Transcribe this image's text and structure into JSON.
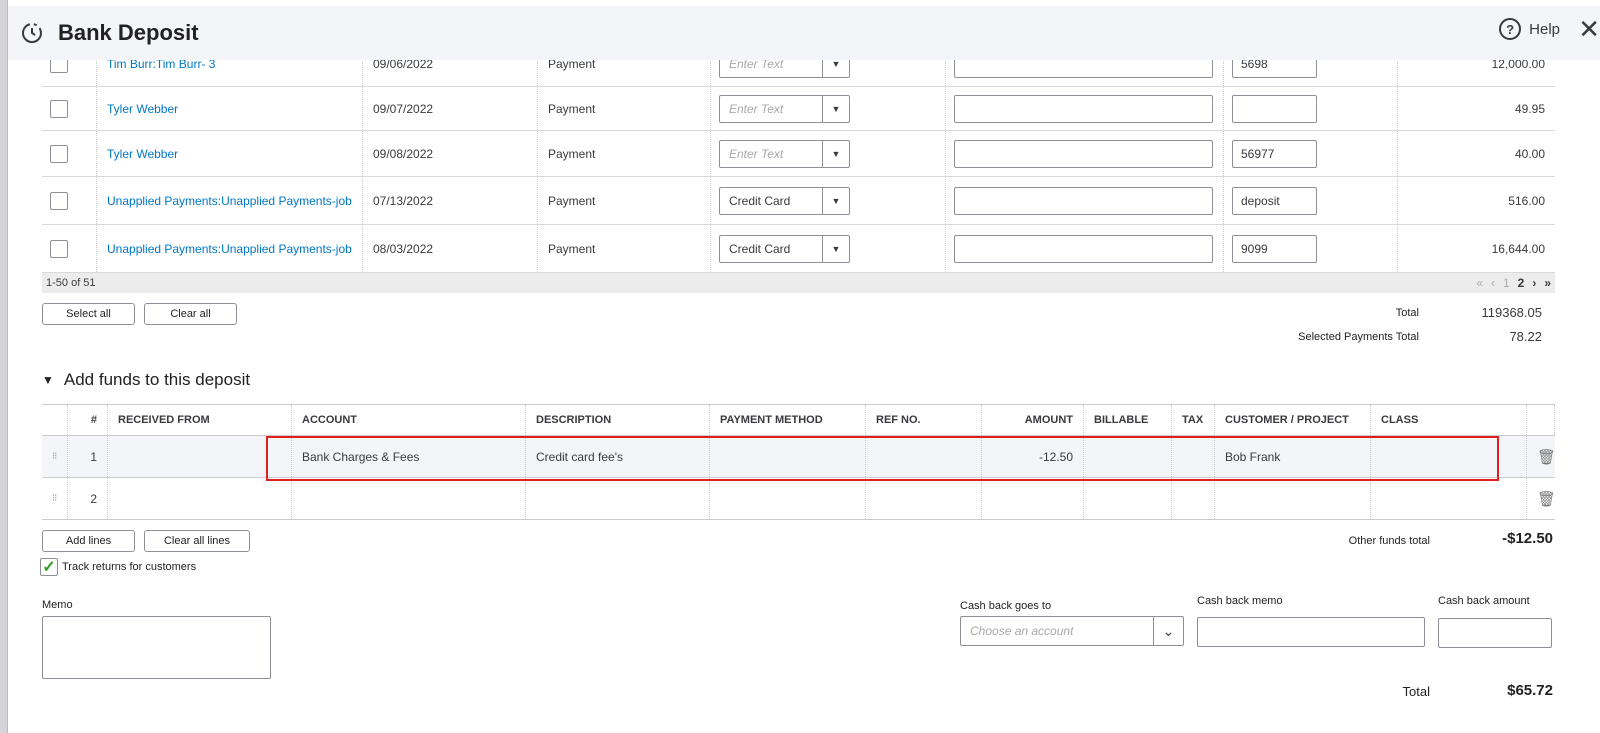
{
  "header": {
    "title": "Bank Deposit",
    "help": "Help"
  },
  "payments": [
    {
      "name": "Tim Burr:Tim Burr- 3",
      "date": "09/06/2022",
      "type": "Payment",
      "method": "",
      "method_placeholder": "Enter Text",
      "memo": "",
      "ref": "5698",
      "amount": "12,000.00",
      "checked": false
    },
    {
      "name": "Tyler Webber",
      "date": "09/07/2022",
      "type": "Payment",
      "method": "",
      "method_placeholder": "Enter Text",
      "memo": "",
      "ref": "",
      "amount": "49.95",
      "checked": false
    },
    {
      "name": "Tyler Webber",
      "date": "09/08/2022",
      "type": "Payment",
      "method": "",
      "method_placeholder": "Enter Text",
      "memo": "",
      "ref": "56977",
      "amount": "40.00",
      "checked": false
    },
    {
      "name": "Unapplied Payments:Unapplied Payments-job",
      "date": "07/13/2022",
      "type": "Payment",
      "method": "Credit Card",
      "method_placeholder": "",
      "memo": "",
      "ref": "deposit",
      "amount": "516.00",
      "checked": false
    },
    {
      "name": "Unapplied Payments:Unapplied Payments-job",
      "date": "08/03/2022",
      "type": "Payment",
      "method": "Credit Card",
      "method_placeholder": "",
      "memo": "",
      "ref": "9099",
      "amount": "16,644.00",
      "checked": false
    }
  ],
  "pagination": {
    "range": "1-50 of 51",
    "first": "«",
    "prev": "‹",
    "page1": "1",
    "page2": "2",
    "next": "›",
    "last": "»",
    "current": "2"
  },
  "buttons": {
    "select_all": "Select all",
    "clear_all": "Clear all",
    "add_lines": "Add lines",
    "clear_all_lines": "Clear all lines"
  },
  "totals": {
    "total_label": "Total",
    "total": "119368.05",
    "selected_label": "Selected Payments Total",
    "selected": "78.22"
  },
  "funds": {
    "section_title": "Add funds to this deposit",
    "columns": [
      "#",
      "RECEIVED FROM",
      "ACCOUNT",
      "DESCRIPTION",
      "PAYMENT METHOD",
      "REF NO.",
      "AMOUNT",
      "BILLABLE",
      "TAX",
      "CUSTOMER / PROJECT",
      "CLASS"
    ],
    "rows": [
      {
        "num": "1",
        "received_from": "",
        "account": "Bank Charges & Fees",
        "description": "Credit card fee's",
        "payment_method": "",
        "ref": "",
        "amount": "-12.50",
        "billable": "",
        "tax": "",
        "customer": "Bob Frank",
        "class": ""
      },
      {
        "num": "2",
        "received_from": "",
        "account": "",
        "description": "",
        "payment_method": "",
        "ref": "",
        "amount": "",
        "billable": "",
        "tax": "",
        "customer": "",
        "class": ""
      }
    ],
    "highlight_color": "#e02020",
    "other_total_label": "Other funds total",
    "other_total": "-$12.50",
    "track_returns": "Track returns for customers",
    "track_returns_checked": true
  },
  "memo_label": "Memo",
  "cash_back": {
    "goes_to_label": "Cash back goes to",
    "goes_to_placeholder": "Choose an account",
    "memo_label": "Cash back memo",
    "amount_label": "Cash back amount"
  },
  "grand_total": {
    "label": "Total",
    "value": "$65.72"
  }
}
